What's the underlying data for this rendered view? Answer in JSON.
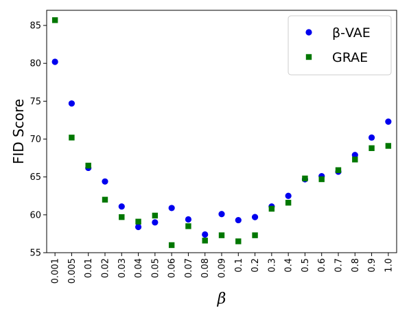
{
  "chart_data": {
    "type": "scatter",
    "title": "",
    "xlabel": "β",
    "ylabel": "FID Score",
    "x_scale": "categorical",
    "categories": [
      "0.001",
      "0.005",
      "0.01",
      "0.02",
      "0.03",
      "0.04",
      "0.05",
      "0.06",
      "0.07",
      "0.08",
      "0.09",
      "0.1",
      "0.2",
      "0.3",
      "0.4",
      "0.5",
      "0.6",
      "0.7",
      "0.8",
      "0.9",
      "1.0"
    ],
    "ylim": [
      55,
      87
    ],
    "yticks": [
      55,
      60,
      65,
      70,
      75,
      80,
      85
    ],
    "grid": false,
    "legend": {
      "position": "top-right",
      "entries": [
        "β-VAE",
        "GRAE"
      ]
    },
    "series": [
      {
        "name": "β-VAE",
        "marker": "circle",
        "color": "#0000ee",
        "values": [
          80.2,
          74.7,
          66.2,
          64.4,
          61.1,
          58.4,
          59.0,
          60.9,
          59.4,
          57.4,
          60.1,
          59.3,
          59.7,
          61.1,
          62.5,
          64.7,
          65.1,
          65.7,
          67.9,
          70.2,
          72.3
        ]
      },
      {
        "name": "GRAE",
        "marker": "square",
        "color": "#007700",
        "values": [
          85.7,
          70.2,
          66.5,
          62.0,
          59.7,
          59.1,
          59.9,
          56.0,
          58.5,
          56.6,
          57.3,
          56.5,
          57.3,
          60.8,
          61.6,
          64.8,
          64.7,
          65.9,
          67.3,
          68.8,
          69.1
        ]
      }
    ]
  }
}
